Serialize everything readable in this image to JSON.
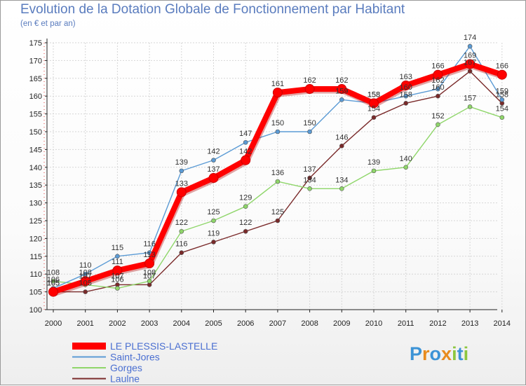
{
  "chart_data": {
    "type": "line",
    "title": "Evolution de la Dotation Globale de Fonctionnement par Habitant",
    "subtitle": "(en € et par an)",
    "xlabel": "",
    "ylabel": "",
    "ylim": [
      100,
      175
    ],
    "y_ticks": [
      100,
      105,
      110,
      115,
      120,
      125,
      130,
      135,
      140,
      145,
      150,
      155,
      160,
      165,
      170,
      175
    ],
    "x": [
      "2000",
      "2001",
      "2002",
      "2003",
      "2004",
      "2005",
      "2006",
      "2007",
      "2008",
      "2009",
      "2010",
      "2011",
      "2012",
      "2013",
      "2014"
    ],
    "legend_position": "bottom-left",
    "series": [
      {
        "name": "Laulne",
        "color": "#7a2a2a",
        "values": [
          105,
          105,
          107,
          107,
          116,
          119,
          122,
          125,
          137,
          146,
          154,
          158,
          160,
          167,
          158
        ]
      },
      {
        "name": "Gorges",
        "color": "#8fd66a",
        "values": [
          108,
          107,
          106,
          108,
          122,
          125,
          129,
          136,
          134,
          134,
          139,
          140,
          152,
          157,
          154
        ]
      },
      {
        "name": "Saint-Jores",
        "color": "#5b9bd5",
        "values": [
          106,
          110,
          115,
          116,
          139,
          142,
          147,
          150,
          150,
          159,
          158,
          160,
          162,
          174,
          159
        ]
      },
      {
        "name": "LE PLESSIS-LASTELLE",
        "color": "#ff0000",
        "values": [
          105,
          108,
          111,
          113,
          133,
          137,
          142,
          161,
          162,
          162,
          158,
          163,
          166,
          169,
          166
        ]
      }
    ]
  },
  "legend": {
    "items": [
      {
        "label": "LE PLESSIS-LASTELLE",
        "color": "#ff0000"
      },
      {
        "label": "Saint-Jores",
        "color": "#5b9bd5"
      },
      {
        "label": "Gorges",
        "color": "#8fd66a"
      },
      {
        "label": "Laulne",
        "color": "#7a2a2a"
      }
    ],
    "text_color": "#4a6fd1"
  },
  "logo": {
    "letters": [
      "P",
      "r",
      "o",
      "x",
      "i",
      "t",
      "i"
    ],
    "colors": [
      "#3c93d6",
      "#e88b1e",
      "#3c93d6",
      "#e88b1e",
      "#8cc63f",
      "#3c93d6",
      "#8cc63f"
    ]
  }
}
